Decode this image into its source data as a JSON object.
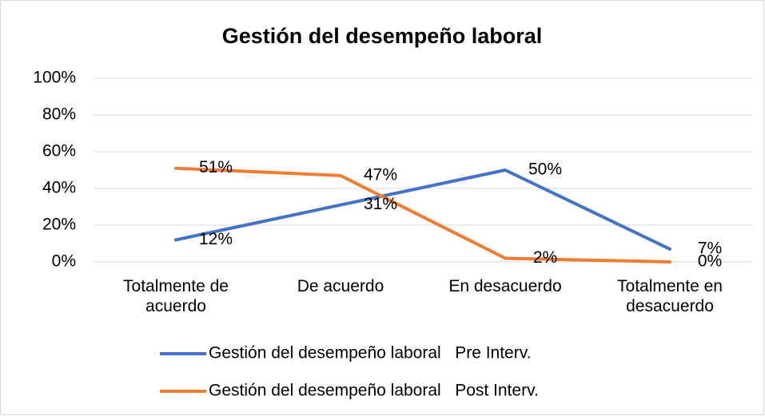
{
  "chart_data": {
    "type": "line",
    "title": "Gestión del desempeño laboral",
    "categories": [
      "Totalmente de acuerdo",
      "De acuerdo",
      "En desacuerdo",
      "Totalmente en desacuerdo"
    ],
    "series": [
      {
        "name": "Gestión del desempeño laboral   Pre Interv.",
        "color": "#4472c4",
        "values": [
          12,
          31,
          50,
          7
        ],
        "value_labels": [
          "12%",
          "31%",
          "50%",
          "7%"
        ]
      },
      {
        "name": "Gestión del desempeño laboral   Post Interv.",
        "color": "#ed7d31",
        "values": [
          51,
          47,
          2,
          0
        ],
        "value_labels": [
          "51%",
          "47%",
          "2%",
          "0%"
        ]
      }
    ],
    "ylim": [
      0,
      100
    ],
    "yticks": [
      {
        "value": 0,
        "label": "0%"
      },
      {
        "value": 20,
        "label": "20%"
      },
      {
        "value": 40,
        "label": "40%"
      },
      {
        "value": 60,
        "label": "60%"
      },
      {
        "value": 80,
        "label": "80%"
      },
      {
        "value": 100,
        "label": "100%"
      }
    ],
    "grid": true,
    "legend": "bottom"
  }
}
